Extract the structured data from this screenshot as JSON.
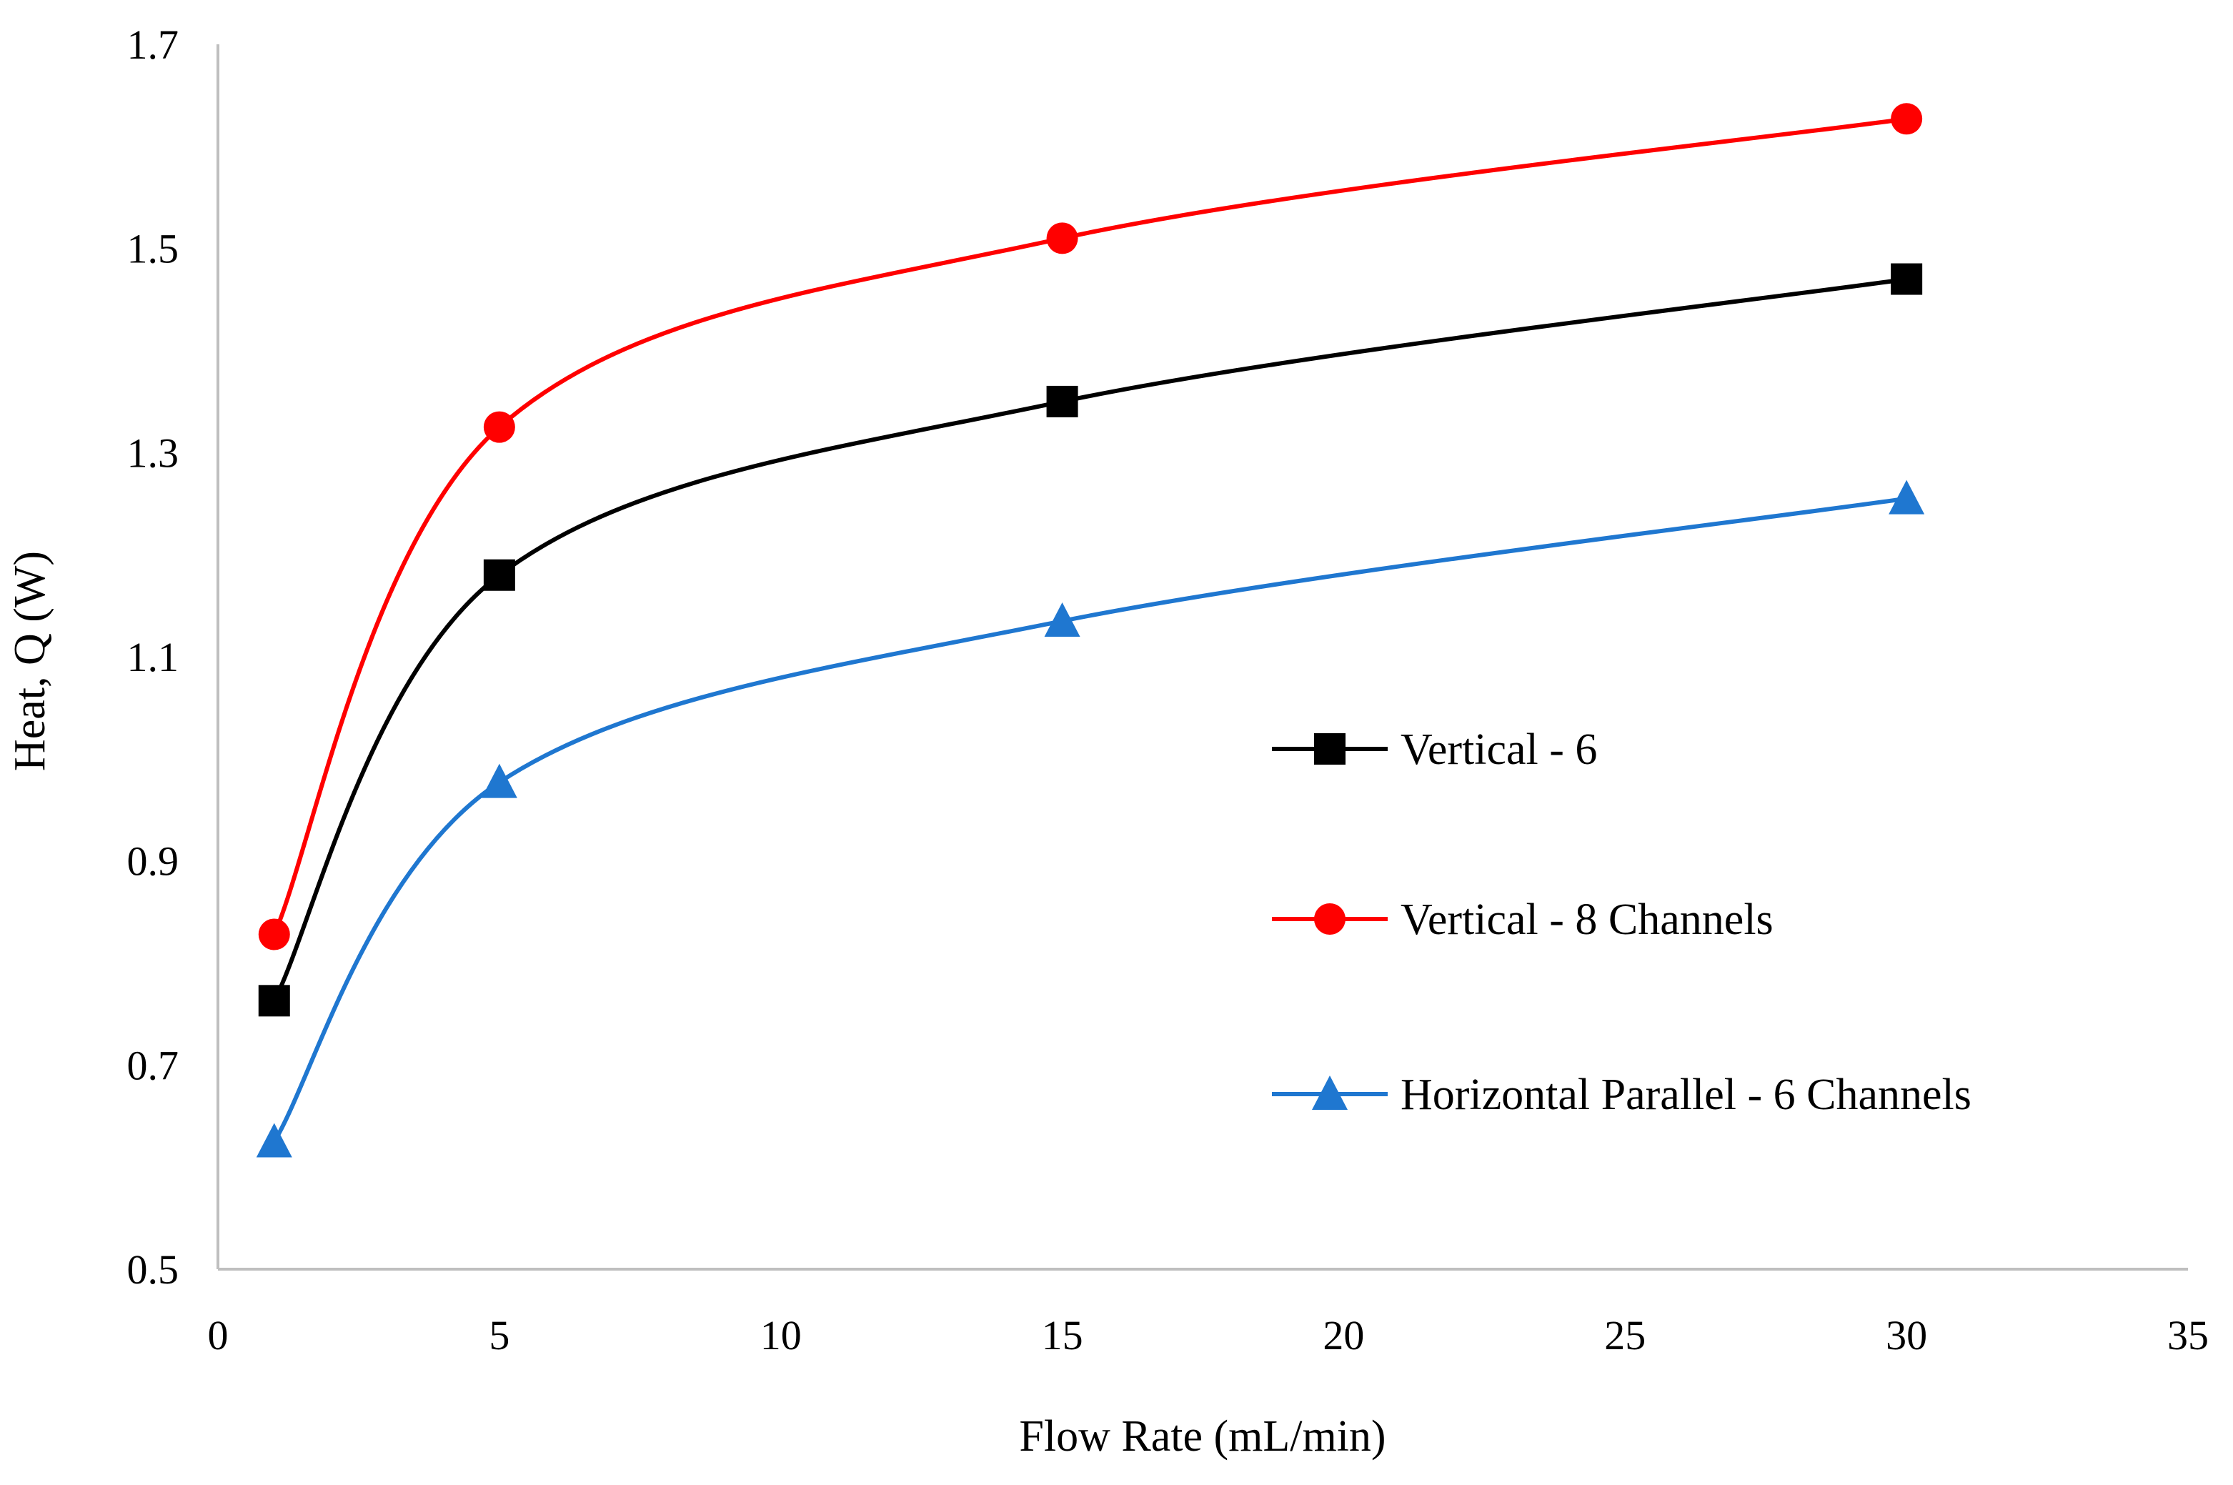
{
  "chart_data": {
    "type": "line",
    "title": "",
    "xlabel": "Flow Rate (mL/min)",
    "ylabel": "Heat, Q (W)",
    "xlim": [
      0,
      35
    ],
    "ylim": [
      0.5,
      1.7
    ],
    "x_ticks": [
      0,
      5,
      10,
      15,
      20,
      25,
      30,
      35
    ],
    "x_tick_labels": [
      "0",
      "5",
      "10",
      "15",
      "20",
      "25",
      "30",
      "35"
    ],
    "y_ticks": [
      0.5,
      0.7,
      0.9,
      1.1,
      1.3,
      1.5,
      1.7
    ],
    "y_tick_labels": [
      "0.5",
      "0.7",
      "0.9",
      "1.1",
      "1.3",
      "1.5",
      "1.7"
    ],
    "grid": false,
    "smooth": true,
    "legend_position": "right",
    "x": [
      1,
      5,
      15,
      30
    ],
    "series": [
      {
        "name": "Vertical - 6",
        "marker": "square",
        "color": "#000000",
        "values": [
          0.763,
          1.18,
          1.35,
          1.47
        ]
      },
      {
        "name": "Vertical - 8 Channels",
        "marker": "circle",
        "color": "#ff0000",
        "values": [
          0.828,
          1.325,
          1.51,
          1.627
        ]
      },
      {
        "name": "Horizontal Parallel - 6 Channels",
        "marker": "triangle",
        "color": "#1f77d0",
        "values": [
          0.625,
          0.977,
          1.135,
          1.255
        ]
      }
    ]
  }
}
